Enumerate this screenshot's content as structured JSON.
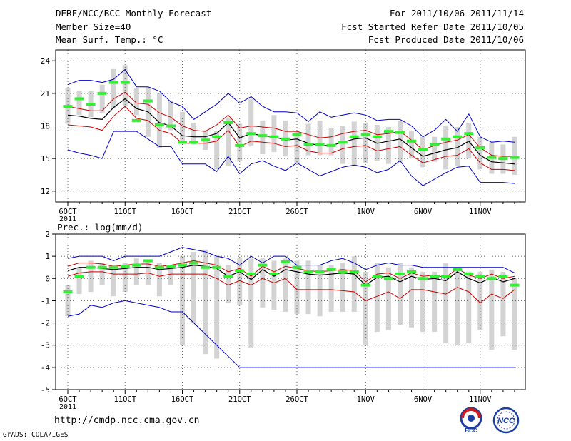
{
  "header": {
    "title": "DERF/NCC/BCC Monthly Forecast",
    "member_size": "Member Size=40",
    "variable": "Mean Surf. Temp.: °C",
    "period": "For 2011/10/06-2011/11/14",
    "fcst_started": "Fcst Started Refer Date 2011/10/05",
    "fcst_produced": "Fcst Produced Date 2011/10/06"
  },
  "footer": {
    "url": "http://cmdp.ncc.cma.gov.cn",
    "credit": "GrADS: COLA/IGES",
    "logo_bcc": "BCC",
    "logo_ncc": "NCC"
  },
  "colors": {
    "box": "#d3d3d3",
    "ensemble_max_min": "#0000cc",
    "spread": "#cc0000",
    "mean": "#000000",
    "median": "#33ee33",
    "grid": "#666666"
  },
  "chart_data": [
    {
      "type": "box-line",
      "title": "Mean Surf. Temp.: °C",
      "ylim": [
        11,
        25
      ],
      "yticks": [
        12,
        15,
        18,
        21,
        24
      ],
      "x_start_day": "2011-10-06",
      "n_days": 40,
      "xtick_labels": [
        "6OCT\n2011",
        "11OCT",
        "16OCT",
        "21OCT",
        "26OCT",
        "1NOV",
        "6NOV",
        "11NOV"
      ],
      "xtick_days": [
        0,
        5,
        10,
        15,
        20,
        26,
        31,
        36
      ],
      "box_low": [
        18.2,
        19.0,
        18.8,
        19.2,
        19.6,
        19.8,
        19.0,
        17.0,
        16.0,
        17.6,
        16.5,
        16.3,
        15.8,
        14.0,
        14.3,
        14.8,
        16.2,
        15.4,
        15.6,
        15.2,
        14.6,
        15.3,
        15.3,
        15.3,
        14.5,
        14.3,
        14.6,
        14.8,
        14.5,
        14.7,
        15.0,
        14.2,
        14.7,
        14.0,
        14.3,
        15.0,
        14.0,
        13.6,
        13.6,
        13.5
      ],
      "box_high": [
        21.5,
        21.2,
        21.2,
        21.8,
        23.3,
        23.6,
        21.5,
        21.6,
        21.0,
        20.3,
        19.3,
        18.3,
        17.6,
        17.5,
        18.7,
        18.2,
        20.5,
        18.5,
        19.0,
        18.5,
        17.5,
        18.2,
        18.5,
        17.8,
        18.0,
        18.4,
        18.3,
        18.1,
        17.9,
        18.5,
        17.5,
        17.0,
        17.0,
        18.0,
        17.9,
        18.3,
        17.0,
        16.5,
        16.3,
        17.0
      ],
      "median": [
        19.8,
        20.5,
        20.0,
        21.0,
        22.0,
        22.0,
        18.5,
        20.3,
        18.1,
        18.0,
        16.5,
        16.5,
        16.7,
        17.0,
        18.3,
        16.2,
        17.3,
        17.1,
        17.0,
        16.8,
        17.2,
        16.3,
        16.3,
        16.2,
        16.5,
        17.0,
        17.2,
        17.0,
        17.5,
        17.4,
        16.6,
        15.8,
        16.3,
        16.8,
        17.0,
        17.3,
        16.0,
        15.1,
        15.0,
        15.1
      ],
      "mean": [
        19.0,
        18.9,
        18.7,
        18.6,
        19.7,
        20.5,
        19.6,
        19.3,
        18.3,
        18.0,
        17.1,
        17.0,
        17.0,
        17.3,
        18.3,
        16.9,
        17.3,
        17.1,
        17.0,
        16.7,
        16.8,
        16.4,
        16.2,
        16.2,
        16.5,
        16.8,
        16.9,
        16.4,
        16.6,
        16.8,
        16.0,
        15.2,
        15.5,
        15.8,
        16.0,
        16.6,
        15.3,
        14.7,
        14.6,
        14.5
      ],
      "spread_high": [
        19.8,
        19.6,
        19.4,
        19.4,
        20.5,
        21.1,
        20.1,
        20.0,
        19.2,
        18.8,
        18.0,
        17.6,
        17.5,
        18.1,
        19.0,
        17.8,
        18.0,
        17.9,
        17.8,
        17.5,
        17.5,
        17.2,
        16.9,
        17.0,
        17.3,
        17.5,
        17.6,
        17.2,
        17.3,
        17.5,
        16.7,
        15.8,
        16.2,
        16.5,
        16.7,
        17.2,
        16.0,
        15.3,
        15.2,
        15.2
      ],
      "spread_low": [
        18.1,
        18.0,
        17.9,
        17.6,
        18.9,
        19.8,
        18.7,
        18.5,
        17.6,
        17.3,
        16.4,
        16.4,
        16.4,
        16.6,
        17.6,
        16.1,
        16.6,
        16.5,
        16.4,
        16.1,
        16.2,
        15.7,
        15.5,
        15.5,
        15.9,
        16.1,
        16.2,
        15.7,
        15.9,
        16.1,
        15.3,
        14.6,
        14.9,
        15.2,
        15.3,
        15.9,
        14.6,
        14.0,
        14.0,
        13.9
      ],
      "ens_max": [
        21.8,
        22.2,
        22.2,
        22.0,
        22.3,
        23.2,
        21.6,
        21.6,
        21.2,
        20.2,
        19.8,
        18.6,
        19.3,
        20.0,
        21.0,
        20.1,
        20.7,
        19.8,
        19.3,
        19.3,
        19.2,
        18.4,
        19.3,
        18.8,
        19.0,
        19.2,
        19.0,
        18.5,
        18.6,
        18.6,
        18.0,
        17.0,
        17.6,
        18.6,
        17.5,
        19.1,
        17.0,
        16.5,
        16.6,
        16.5
      ],
      "ens_min": [
        15.8,
        15.5,
        15.3,
        15.0,
        17.5,
        17.5,
        17.5,
        16.8,
        16.1,
        16.1,
        14.5,
        14.5,
        14.5,
        13.8,
        15.2,
        13.6,
        14.5,
        14.8,
        14.3,
        13.9,
        14.6,
        14.0,
        13.4,
        13.8,
        14.2,
        14.4,
        14.2,
        13.7,
        14.0,
        14.8,
        13.4,
        12.5,
        13.1,
        13.7,
        14.2,
        14.3,
        12.8,
        12.8,
        12.8,
        12.7
      ]
    },
    {
      "type": "box-line",
      "title": "Prec.: log(mm/d)",
      "ylim": [
        -5,
        2
      ],
      "yticks": [
        -5,
        -4,
        -3,
        -2,
        -1,
        0,
        1,
        2
      ],
      "x_start_day": "2011-10-06",
      "n_days": 40,
      "xtick_labels": [
        "6OCT\n2011",
        "11OCT",
        "16OCT",
        "21OCT",
        "26OCT",
        "1NOV",
        "6NOV",
        "11NOV"
      ],
      "xtick_days": [
        0,
        5,
        10,
        15,
        20,
        26,
        31,
        36
      ],
      "box_low": [
        -1.7,
        -0.7,
        -0.6,
        -0.3,
        -0.8,
        -0.6,
        -0.3,
        -0.3,
        -0.8,
        -0.3,
        -3.0,
        -2.0,
        -3.4,
        -3.6,
        -1.1,
        -1.2,
        -3.1,
        -1.3,
        -1.4,
        -1.5,
        -1.6,
        -1.6,
        -1.7,
        -1.5,
        -1.5,
        -1.5,
        -3.0,
        -2.4,
        -2.3,
        -2.1,
        -2.2,
        -2.4,
        -2.4,
        -2.9,
        -3.0,
        -2.9,
        -2.3,
        -3.2,
        -2.6,
        -3.2
      ],
      "box_high": [
        -0.3,
        0.5,
        0.8,
        0.7,
        0.6,
        0.7,
        0.9,
        0.8,
        0.7,
        0.5,
        1.0,
        1.2,
        1.3,
        1.0,
        0.6,
        0.9,
        0.9,
        0.9,
        0.8,
        0.9,
        0.8,
        0.8,
        0.6,
        0.6,
        0.7,
        1.0,
        0.3,
        0.7,
        0.5,
        0.7,
        0.5,
        0.3,
        0.3,
        0.7,
        0.5,
        0.3,
        0.3,
        0.4,
        0.3,
        0.0
      ],
      "median": [
        -0.6,
        0.1,
        0.5,
        0.5,
        0.5,
        0.55,
        0.6,
        0.8,
        0.5,
        0.55,
        0.6,
        0.7,
        0.5,
        0.5,
        0.1,
        0.35,
        0.2,
        0.6,
        0.2,
        0.75,
        0.5,
        0.3,
        0.3,
        0.4,
        0.3,
        0.3,
        -0.3,
        0.1,
        0.0,
        0.2,
        0.3,
        0.0,
        0.1,
        0.1,
        0.4,
        0.2,
        0.1,
        0.0,
        0.1,
        -0.3
      ],
      "mean": [
        0.35,
        0.5,
        0.5,
        0.45,
        0.4,
        0.45,
        0.5,
        0.5,
        0.4,
        0.45,
        0.5,
        0.6,
        0.55,
        0.45,
        0.1,
        0.3,
        -0.05,
        0.4,
        0.1,
        0.4,
        0.3,
        0.2,
        0.15,
        0.2,
        0.25,
        0.2,
        -0.3,
        0.05,
        0.1,
        -0.15,
        0.1,
        -0.05,
        0.0,
        -0.1,
        0.3,
        0.0,
        -0.2,
        0.05,
        -0.15,
        0.0
      ],
      "spread_high": [
        0.55,
        0.7,
        0.7,
        0.65,
        0.55,
        0.6,
        0.65,
        0.65,
        0.55,
        0.6,
        0.7,
        0.8,
        0.7,
        0.6,
        0.3,
        0.45,
        0.1,
        0.55,
        0.3,
        0.55,
        0.45,
        0.35,
        0.3,
        0.35,
        0.4,
        0.35,
        -0.15,
        0.2,
        0.25,
        0.0,
        0.25,
        0.1,
        0.15,
        0.05,
        0.45,
        0.15,
        0.0,
        0.2,
        0.0,
        0.1
      ],
      "spread_low": [
        0.1,
        0.25,
        0.3,
        0.3,
        0.2,
        0.2,
        0.2,
        0.25,
        0.1,
        0.2,
        0.2,
        0.2,
        0.2,
        0.0,
        -0.3,
        -0.1,
        -0.3,
        0.0,
        -0.2,
        0.0,
        -0.5,
        -0.5,
        -0.5,
        -0.5,
        -0.55,
        -0.6,
        -1.0,
        -0.8,
        -0.6,
        -0.9,
        -0.5,
        -0.5,
        -0.6,
        -0.7,
        -0.4,
        -0.6,
        -1.1,
        -0.7,
        -0.9,
        -0.5
      ],
      "ens_max": [
        0.9,
        1.0,
        1.0,
        1.0,
        0.8,
        1.0,
        1.0,
        1.0,
        1.0,
        1.2,
        1.4,
        1.3,
        1.2,
        1.0,
        0.9,
        0.6,
        1.0,
        0.7,
        1.0,
        1.0,
        0.6,
        0.6,
        0.6,
        0.8,
        0.9,
        0.7,
        0.4,
        0.6,
        0.7,
        0.6,
        0.6,
        0.5,
        0.5,
        0.5,
        0.5,
        0.5,
        0.5,
        0.5,
        0.5,
        0.25
      ],
      "ens_min": [
        -1.7,
        -1.6,
        -1.2,
        -1.3,
        -1.1,
        -1.0,
        -1.1,
        -1.2,
        -1.3,
        -1.5,
        -1.5,
        -2.0,
        -2.5,
        -3.0,
        -3.5,
        -4.0,
        -4.0,
        -4.0,
        -4.0,
        -4.0,
        -4.0,
        -4.0,
        -4.0,
        -4.0,
        -4.0,
        -4.0,
        -4.0,
        -4.0,
        -4.0,
        -4.0,
        -4.0,
        -4.0,
        -4.0,
        -4.0,
        -4.0,
        -4.0,
        -4.0,
        -4.0,
        -4.0,
        -4.0
      ]
    }
  ]
}
